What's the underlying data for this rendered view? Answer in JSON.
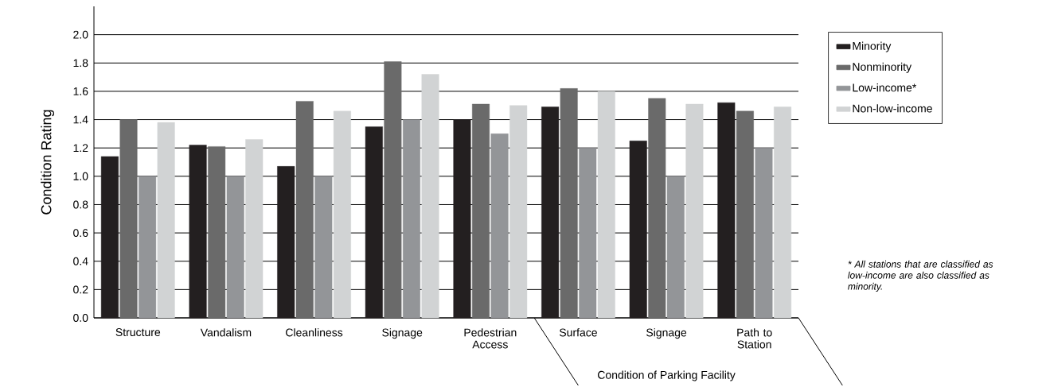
{
  "chart_data": {
    "type": "bar",
    "ylabel": "Condition Rating",
    "categories": [
      "Structure",
      "Vandalism",
      "Cleanliness",
      "Signage",
      "Pedestrian Access",
      "Surface",
      "Signage",
      "Path to Station"
    ],
    "series": [
      {
        "name": "Minority",
        "color": "#231f20",
        "values": [
          1.14,
          1.22,
          1.07,
          1.35,
          1.4,
          1.49,
          1.25,
          1.52
        ]
      },
      {
        "name": "Nonminority",
        "color": "#6a6a6a",
        "values": [
          1.4,
          1.21,
          1.53,
          1.81,
          1.51,
          1.62,
          1.55,
          1.46
        ]
      },
      {
        "name": "Low-income*",
        "color": "#939598",
        "values": [
          1.0,
          1.0,
          1.0,
          1.4,
          1.3,
          1.2,
          1.0,
          1.2
        ]
      },
      {
        "name": "Non-low-income",
        "color": "#d1d3d4",
        "values": [
          1.38,
          1.26,
          1.46,
          1.72,
          1.5,
          1.6,
          1.51,
          1.49
        ]
      }
    ],
    "ylim": [
      0,
      2.2
    ],
    "yticks": [
      {
        "value": 0,
        "label": "0.0"
      },
      {
        "value": 0.2,
        "label": "0.2"
      },
      {
        "value": 0.4,
        "label": "0.4"
      },
      {
        "value": 0.6,
        "label": "0.6"
      },
      {
        "value": 0.8,
        "label": "0.8"
      },
      {
        "value": 1.0,
        "label": "1.0"
      },
      {
        "value": 1.2,
        "label": "1.2"
      },
      {
        "value": 1.4,
        "label": "1.4"
      },
      {
        "value": 1.6,
        "label": "1.6"
      },
      {
        "value": 1.8,
        "label": "1.8"
      },
      {
        "value": 2.0,
        "label": "2.0"
      }
    ],
    "grid": "y",
    "legend": "right",
    "annotations": [
      "Condition of Parking Facility",
      "* All stations that are classified as low-income are also classified as minority."
    ]
  }
}
